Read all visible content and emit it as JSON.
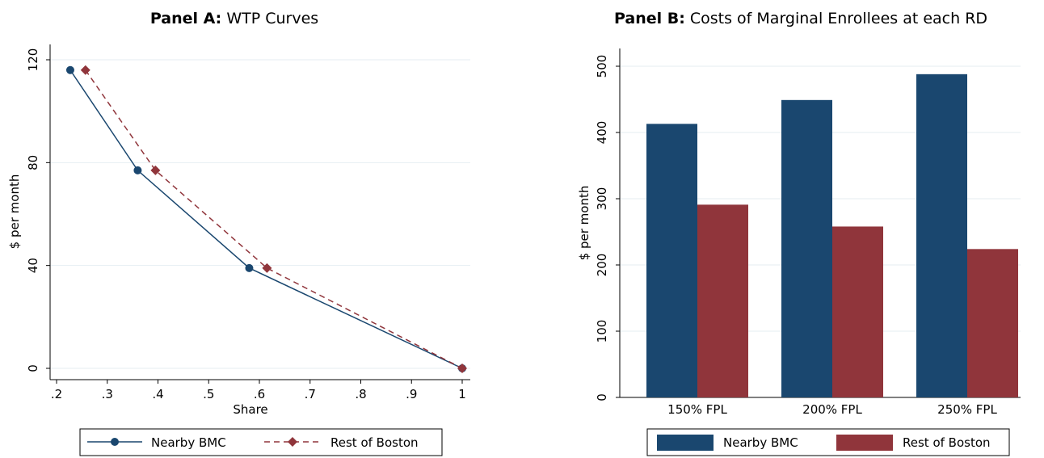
{
  "chart_data": [
    {
      "type": "line",
      "panel": "Panel A:",
      "title": "WTP Curves",
      "xlabel": "Share",
      "ylabel": "$ per month",
      "xlim": [
        0.2,
        1.0
      ],
      "ylim": [
        0,
        120
      ],
      "xticks": [
        0.2,
        0.3,
        0.4,
        0.5,
        0.6,
        0.7,
        0.8,
        0.9,
        1
      ],
      "xtick_labels": [
        ".2",
        ".3",
        ".4",
        ".5",
        ".6",
        ".7",
        ".8",
        ".9",
        "1"
      ],
      "yticks": [
        0,
        40,
        80,
        120
      ],
      "ytick_labels": [
        "0",
        "40",
        "80",
        "120"
      ],
      "grid": true,
      "legend_position": "bottom",
      "series": [
        {
          "name": "Nearby BMC",
          "color": "#1a476f",
          "marker": "circle",
          "line": "solid",
          "x": [
            0.227,
            0.36,
            0.58,
            1.0
          ],
          "y": [
            116,
            77,
            39,
            0
          ]
        },
        {
          "name": "Rest of Boston",
          "color": "#90353b",
          "marker": "diamond",
          "line": "dashed",
          "x": [
            0.257,
            0.395,
            0.615,
            1.0
          ],
          "y": [
            116,
            77,
            39,
            0
          ]
        }
      ]
    },
    {
      "type": "bar",
      "panel": "Panel B:",
      "title": "Costs of Marginal Enrollees at each RD",
      "xlabel": "",
      "ylabel": "$ per month",
      "ylim": [
        0,
        500
      ],
      "yticks": [
        0,
        100,
        200,
        300,
        400,
        500
      ],
      "ytick_labels": [
        "0",
        "100",
        "200",
        "300",
        "400",
        "500"
      ],
      "grid": true,
      "legend_position": "bottom",
      "categories": [
        "150% FPL",
        "200% FPL",
        "250% FPL"
      ],
      "series": [
        {
          "name": "Nearby BMC",
          "color": "#1a476f",
          "values": [
            413,
            449,
            488
          ]
        },
        {
          "name": "Rest of Boston",
          "color": "#90353b",
          "values": [
            291,
            258,
            224
          ]
        }
      ]
    }
  ]
}
